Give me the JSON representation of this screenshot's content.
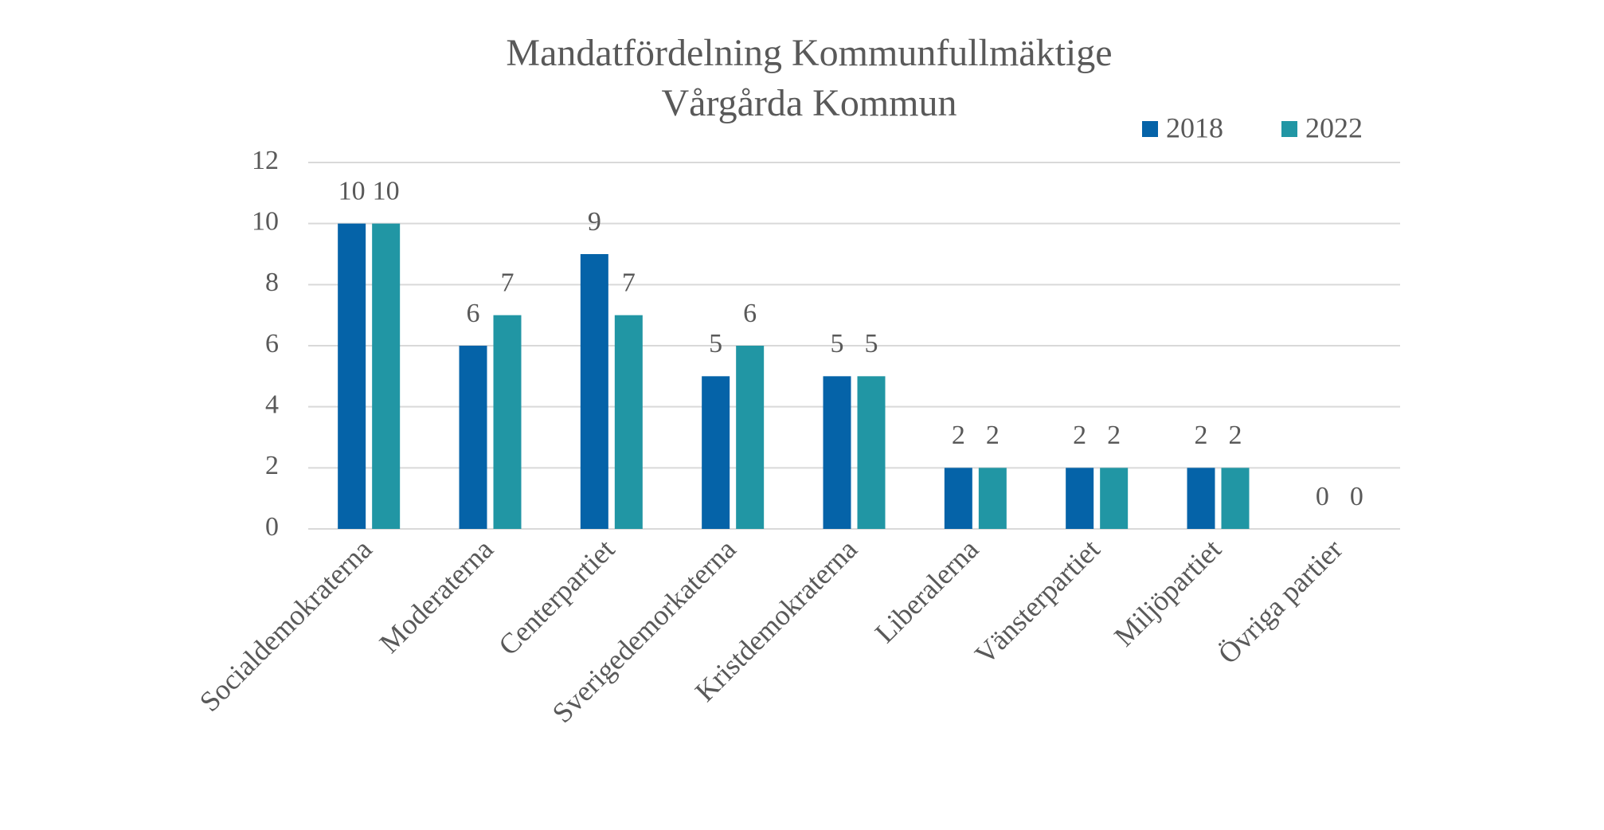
{
  "chart_data": {
    "type": "bar",
    "title": "Mandatfördelning Kommunfullmäktige",
    "subtitle": "Vårgårda Kommun",
    "categories": [
      "Socialdemokraterna",
      "Moderaterna",
      "Centerpartiet",
      "Sverigedemorkaterna",
      "Kristdemokraterna",
      "Liberalerna",
      "Vänsterpartiet",
      "Miljöpartiet",
      "Övriga partier"
    ],
    "series": [
      {
        "name": "2018",
        "color": "#0563a8",
        "values": [
          10,
          6,
          9,
          5,
          5,
          2,
          2,
          2,
          0
        ]
      },
      {
        "name": "2022",
        "color": "#2196a4",
        "values": [
          10,
          7,
          7,
          6,
          5,
          2,
          2,
          2,
          0
        ]
      }
    ],
    "ylim": [
      0,
      12
    ],
    "yticks": [
      0,
      2,
      4,
      6,
      8,
      10,
      12
    ],
    "grid": true,
    "legend": "top-right"
  }
}
